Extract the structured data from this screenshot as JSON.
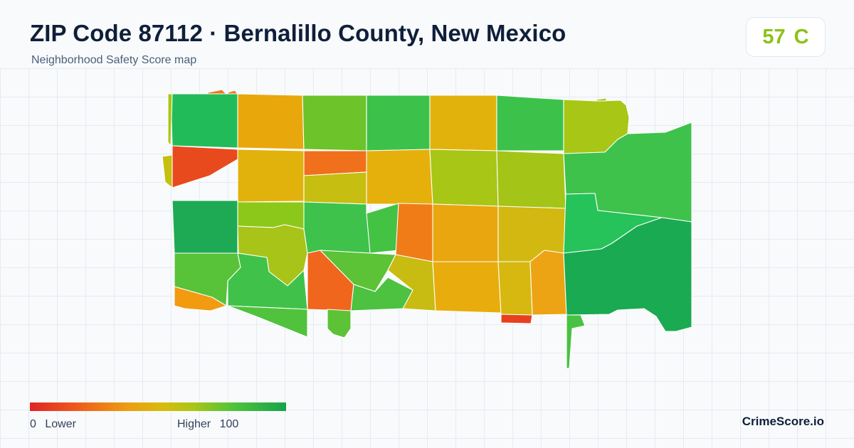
{
  "header": {
    "title": "ZIP Code 87112 · Bernalillo County, New Mexico",
    "subtitle": "Neighborhood Safety Score map"
  },
  "score": {
    "value": "57",
    "grade": "C",
    "color": "#8cc21a"
  },
  "legend": {
    "min_value": "0",
    "min_label": "Lower",
    "max_label": "Higher",
    "max_value": "100",
    "colors": [
      "#dc2626",
      "#ef5a1c",
      "#ec9c12",
      "#d8bc0c",
      "#a8c615",
      "#4cc33a",
      "#16a34a"
    ]
  },
  "brand": {
    "name": "CrimeScore.io"
  },
  "map": {
    "regions": [
      {
        "name": "r-nw-corner-1",
        "color": "#22bb5a"
      },
      {
        "name": "r-n-2",
        "color": "#e8a80c"
      },
      {
        "name": "r-n-3",
        "color": "#6cc42a"
      },
      {
        "name": "r-n-4",
        "color": "#3cc24a"
      },
      {
        "name": "r-n-5",
        "color": "#e2b20c"
      },
      {
        "name": "r-n-6",
        "color": "#3cc24a"
      },
      {
        "name": "r-ne-7",
        "color": "#a8c615"
      },
      {
        "name": "r-w-8",
        "color": "#e84a1e"
      },
      {
        "name": "r-9",
        "color": "#e2b20c"
      },
      {
        "name": "r-10",
        "color": "#f0701c"
      },
      {
        "name": "r-11",
        "color": "#c6be10"
      },
      {
        "name": "r-12",
        "color": "#e6b00c"
      },
      {
        "name": "r-13",
        "color": "#a8c615"
      },
      {
        "name": "r-14",
        "color": "#a4c418"
      },
      {
        "name": "r-e-15",
        "color": "#3ec24c"
      },
      {
        "name": "r-w-16",
        "color": "#1eaa55"
      },
      {
        "name": "r-17",
        "color": "#8cc81a"
      },
      {
        "name": "r-18",
        "color": "#a8c418"
      },
      {
        "name": "r-19",
        "color": "#3ec24c"
      },
      {
        "name": "r-20",
        "color": "#44c244"
      },
      {
        "name": "r-21",
        "color": "#f07c18"
      },
      {
        "name": "r-22",
        "color": "#eaa60e"
      },
      {
        "name": "r-23",
        "color": "#d2b810"
      },
      {
        "name": "r-e-24",
        "color": "#26c25a"
      },
      {
        "name": "r-w-25",
        "color": "#58c238"
      },
      {
        "name": "r-26",
        "color": "#40c24a"
      },
      {
        "name": "r-27",
        "color": "#f0661c"
      },
      {
        "name": "r-28",
        "color": "#5cc236"
      },
      {
        "name": "r-29",
        "color": "#c8bc12"
      },
      {
        "name": "r-30",
        "color": "#e8ac0c"
      },
      {
        "name": "r-31",
        "color": "#d6b810"
      },
      {
        "name": "r-32",
        "color": "#eca414"
      },
      {
        "name": "r-se-33",
        "color": "#1aaa52"
      },
      {
        "name": "r-sw-34",
        "color": "#f29a10"
      },
      {
        "name": "r-s-35",
        "color": "#50c23c"
      },
      {
        "name": "r-s-36",
        "color": "#5cc236"
      },
      {
        "name": "r-s-37",
        "color": "#4cc240"
      },
      {
        "name": "r-s-38",
        "color": "#e8401e"
      },
      {
        "name": "r-s-39",
        "color": "#48c242"
      },
      {
        "name": "r-w-40",
        "color": "#c6be10"
      },
      {
        "name": "r-top-41",
        "color": "#f07a1a"
      }
    ]
  }
}
